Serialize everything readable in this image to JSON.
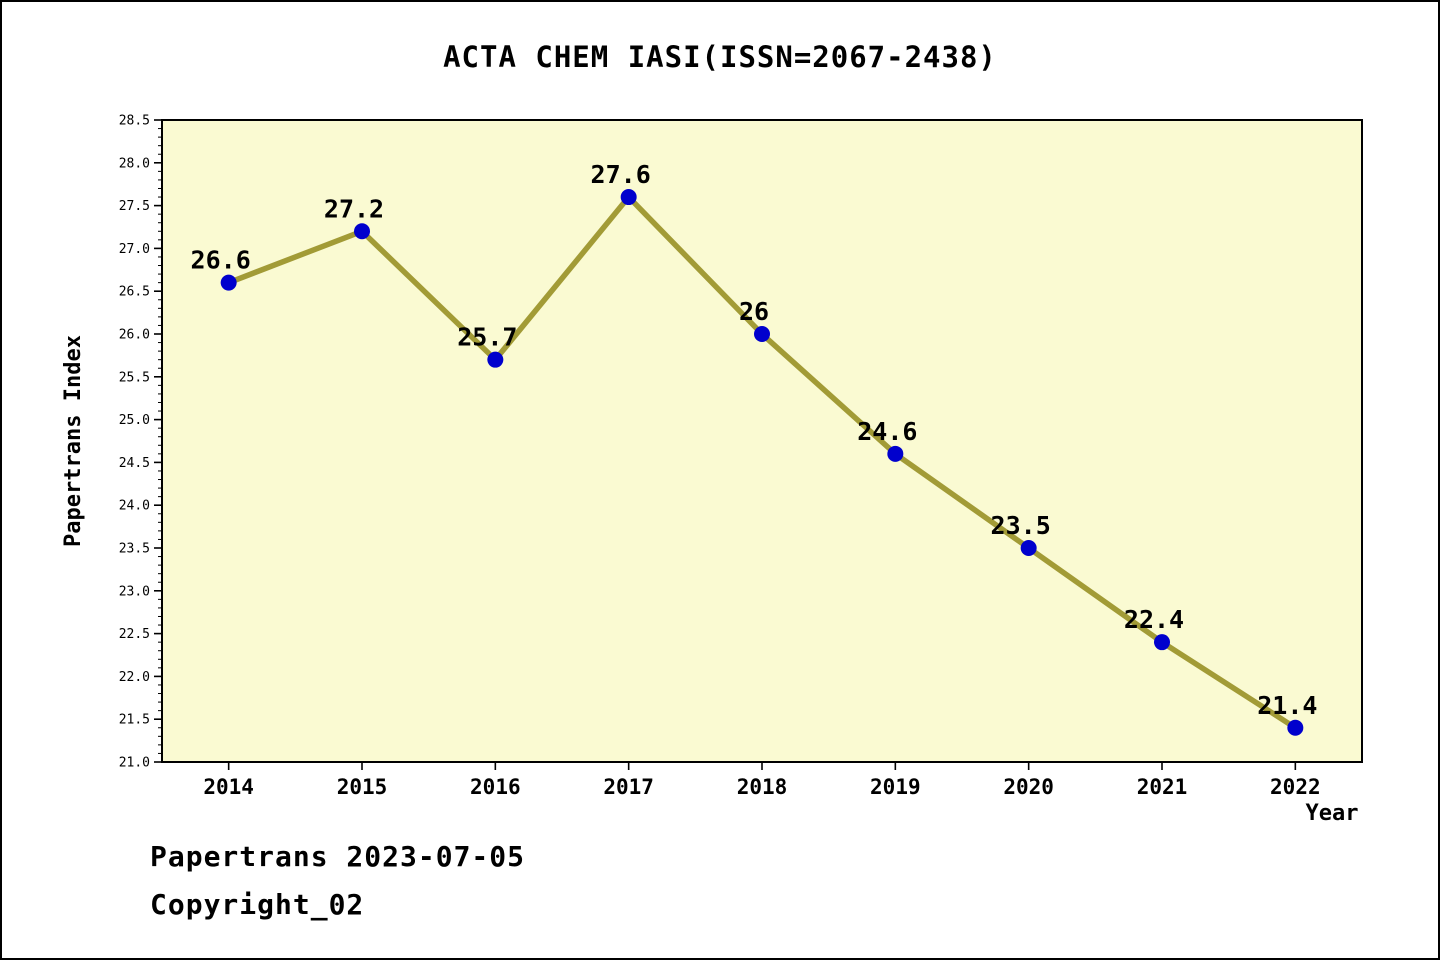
{
  "page": {
    "title": "ACTA CHEM IASI(ISSN=2067-2438)",
    "footer_line1": "Papertrans 2023-07-05",
    "footer_line2": "Copyright_02"
  },
  "chart_data": {
    "type": "line",
    "title": "ACTA CHEM IASI(ISSN=2067-2438)",
    "x": [
      2014,
      2015,
      2016,
      2017,
      2018,
      2019,
      2020,
      2021,
      2022
    ],
    "values": [
      26.6,
      27.2,
      25.7,
      27.6,
      26,
      24.6,
      23.5,
      22.4,
      21.4
    ],
    "point_labels": [
      "26.6",
      "27.2",
      "25.7",
      "27.6",
      "26",
      "24.6",
      "23.5",
      "22.4",
      "21.4"
    ],
    "series_name": "Papertrans Index",
    "xlabel": "Year",
    "ylabel": "Papertrans Index",
    "ylim": [
      21.0,
      28.5
    ],
    "y_major_step": 0.5,
    "y_minor_step": 0.1,
    "grid": false,
    "legend": "none",
    "colors": {
      "line": "#a29b36",
      "point": "#0000cd",
      "plot_background": "#fafad2",
      "axis": "#000000",
      "text": "#000000"
    }
  }
}
